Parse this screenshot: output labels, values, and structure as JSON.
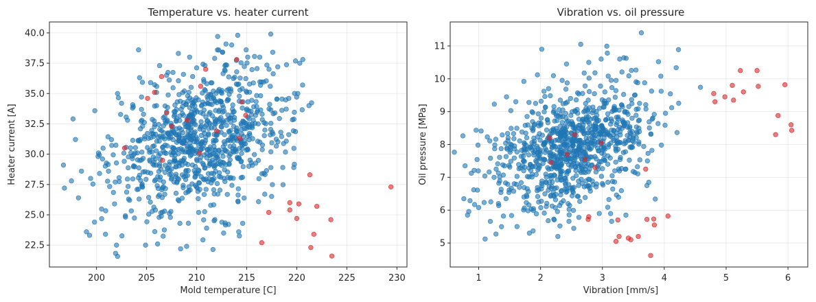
{
  "chart_data": [
    {
      "type": "scatter",
      "title": "Temperature vs. heater current",
      "xlabel": "Mold temperature [C]",
      "ylabel": "Heater current [A]",
      "xlim": [
        195.3,
        231.0
      ],
      "ylim": [
        20.7,
        40.9
      ],
      "xticks": [
        "200",
        "205",
        "210",
        "215",
        "220",
        "225",
        "230"
      ],
      "yticks": [
        "22.5",
        "25.0",
        "27.5",
        "30.0",
        "32.5",
        "35.0",
        "37.5",
        "40.0"
      ],
      "grid": true,
      "colors": {
        "normal": "#1f77b4",
        "anomaly": "#d62728"
      },
      "cluster": {
        "count": 900,
        "x_mean": 210.5,
        "x_sd": 4.3,
        "y_mean": 31.2,
        "y_sd": 2.9,
        "correlation": 0.3
      },
      "series": [
        {
          "role": "normal",
          "points": [
            [
              196.7,
              29.1
            ],
            [
              197.5,
              27.8
            ],
            [
              198.2,
              26.4
            ],
            [
              198.5,
              28.6
            ],
            [
              199.0,
              23.6
            ],
            [
              199.8,
              24.4
            ],
            [
              200.2,
              30.1
            ],
            [
              200.6,
              29.6
            ],
            [
              200.9,
              23.4
            ],
            [
              201.2,
              28.6
            ],
            [
              201.5,
              31.2
            ],
            [
              201.8,
              25.9
            ],
            [
              202.0,
              22.5
            ],
            [
              202.1,
              35.0
            ],
            [
              202.5,
              34.2
            ],
            [
              203.1,
              32.8
            ],
            [
              203.6,
              33.8
            ],
            [
              204.2,
              38.6
            ],
            [
              204.3,
              36.3
            ],
            [
              204.9,
              22.5
            ],
            [
              205.4,
              35.9
            ],
            [
              206.1,
              22.6
            ],
            [
              206.3,
              37.3
            ],
            [
              206.8,
              25.3
            ],
            [
              207.0,
              36.5
            ],
            [
              208.4,
              22.2
            ],
            [
              209.0,
              22.4
            ],
            [
              209.3,
              38.0
            ],
            [
              209.6,
              36.4
            ],
            [
              210.2,
              25.2
            ],
            [
              211.0,
              23.9
            ],
            [
              211.8,
              37.9
            ],
            [
              212.1,
              39.7
            ],
            [
              212.6,
              38.4
            ],
            [
              213.5,
              39.0
            ],
            [
              214.1,
              39.8
            ],
            [
              214.2,
              23.6
            ],
            [
              214.6,
              24.3
            ],
            [
              215.1,
              38.0
            ],
            [
              216.3,
              38.0
            ],
            [
              216.8,
              26.7
            ],
            [
              217.4,
              39.9
            ],
            [
              217.6,
              38.4
            ],
            [
              218.1,
              37.2
            ],
            [
              218.6,
              28.9
            ],
            [
              219.7,
              28.9
            ],
            [
              220.1,
              35.0
            ],
            [
              220.3,
              37.5
            ],
            [
              220.6,
              37.8
            ],
            [
              219.2,
              34.6
            ]
          ]
        },
        {
          "role": "anomaly",
          "points": [
            [
              202.8,
              30.5
            ],
            [
              205.1,
              34.6
            ],
            [
              205.8,
              35.1
            ],
            [
              206.5,
              36.4
            ],
            [
              206.6,
              29.5
            ],
            [
              207.0,
              33.4
            ],
            [
              207.5,
              32.3
            ],
            [
              209.1,
              32.8
            ],
            [
              210.4,
              35.6
            ],
            [
              210.9,
              37.0
            ],
            [
              210.3,
              30.1
            ],
            [
              212.0,
              31.9
            ],
            [
              214.0,
              37.8
            ],
            [
              214.3,
              31.3
            ],
            [
              214.5,
              34.3
            ],
            [
              214.9,
              33.2
            ],
            [
              216.5,
              22.7
            ],
            [
              217.2,
              25.2
            ],
            [
              219.3,
              26.0
            ],
            [
              219.3,
              25.4
            ],
            [
              220.0,
              24.7
            ],
            [
              220.2,
              25.9
            ],
            [
              221.3,
              28.3
            ],
            [
              221.7,
              23.4
            ],
            [
              222.0,
              25.7
            ],
            [
              221.4,
              22.3
            ],
            [
              223.5,
              21.6
            ],
            [
              223.4,
              24.6
            ],
            [
              229.4,
              27.3
            ]
          ]
        }
      ]
    },
    {
      "type": "scatter",
      "title": "Vibration vs. oil pressure",
      "xlabel": "Vibration [mm/s]",
      "ylabel": "Oil pressure [MPa]",
      "xlim": [
        0.54,
        6.32
      ],
      "ylim": [
        4.27,
        11.73
      ],
      "xticks": [
        "1",
        "2",
        "3",
        "4",
        "5",
        "6"
      ],
      "yticks": [
        "5",
        "6",
        "7",
        "8",
        "9",
        "10",
        "11"
      ],
      "grid": true,
      "colors": {
        "normal": "#1f77b4",
        "anomaly": "#d62728"
      },
      "cluster": {
        "count": 900,
        "x_mean": 2.5,
        "x_sd": 0.62,
        "y_mean": 7.9,
        "y_sd": 0.95,
        "correlation": 0.42
      },
      "series": [
        {
          "role": "normal",
          "points": [
            [
              0.78,
              7.35
            ],
            [
              0.82,
              5.85
            ],
            [
              0.84,
              5.96
            ],
            [
              0.92,
              6.62
            ],
            [
              0.98,
              6.61
            ],
            [
              1.04,
              8.41
            ],
            [
              1.14,
              8.23
            ],
            [
              1.25,
              7.0
            ],
            [
              1.32,
              6.2
            ],
            [
              1.4,
              5.82
            ],
            [
              1.62,
              5.5
            ],
            [
              1.73,
              9.92
            ],
            [
              1.82,
              5.3
            ],
            [
              1.88,
              5.37
            ],
            [
              1.92,
              9.25
            ],
            [
              2.02,
              10.9
            ],
            [
              2.13,
              9.7
            ],
            [
              2.28,
              5.2
            ],
            [
              2.35,
              9.95
            ],
            [
              2.42,
              10.45
            ],
            [
              2.62,
              5.78
            ],
            [
              2.65,
              11.05
            ],
            [
              2.78,
              10.5
            ],
            [
              2.98,
              10.6
            ],
            [
              3.08,
              10.78
            ],
            [
              3.28,
              10.6
            ],
            [
              3.38,
              5.85
            ],
            [
              3.52,
              9.5
            ],
            [
              3.63,
              11.4
            ],
            [
              3.72,
              6.75
            ],
            [
              3.8,
              7.82
            ],
            [
              3.95,
              9.62
            ],
            [
              4.02,
              8.95
            ],
            [
              4.12,
              9.12
            ],
            [
              3.15,
              5.66
            ],
            [
              2.46,
              5.66
            ],
            [
              1.95,
              10.12
            ],
            [
              2.88,
              10.18
            ],
            [
              3.6,
              9.25
            ],
            [
              1.6,
              9.3
            ],
            [
              1.52,
              9.03
            ],
            [
              3.75,
              6.85
            ],
            [
              1.0,
              6.08
            ],
            [
              2.95,
              5.9
            ],
            [
              1.45,
              9.45
            ]
          ]
        },
        {
          "role": "anomaly",
          "points": [
            [
              2.15,
              8.2
            ],
            [
              2.17,
              7.45
            ],
            [
              2.43,
              7.7
            ],
            [
              2.55,
              8.3
            ],
            [
              2.72,
              7.55
            ],
            [
              2.78,
              5.8
            ],
            [
              2.77,
              5.72
            ],
            [
              2.88,
              7.3
            ],
            [
              2.98,
              8.05
            ],
            [
              3.25,
              5.7
            ],
            [
              3.27,
              5.2
            ],
            [
              3.22,
              5.05
            ],
            [
              3.42,
              5.15
            ],
            [
              3.46,
              5.1
            ],
            [
              3.58,
              5.2
            ],
            [
              3.7,
              7.25
            ],
            [
              3.72,
              5.72
            ],
            [
              3.78,
              4.62
            ],
            [
              3.83,
              5.73
            ],
            [
              3.84,
              5.55
            ],
            [
              4.06,
              5.82
            ],
            [
              4.8,
              9.55
            ],
            [
              4.82,
              9.3
            ],
            [
              4.98,
              9.45
            ],
            [
              5.1,
              9.8
            ],
            [
              5.12,
              9.35
            ],
            [
              5.23,
              10.25
            ],
            [
              5.28,
              9.6
            ],
            [
              5.5,
              10.25
            ],
            [
              5.52,
              9.77
            ],
            [
              5.8,
              8.3
            ],
            [
              5.84,
              8.88
            ],
            [
              5.95,
              9.82
            ],
            [
              6.05,
              8.6
            ],
            [
              6.06,
              8.43
            ]
          ]
        }
      ]
    }
  ]
}
